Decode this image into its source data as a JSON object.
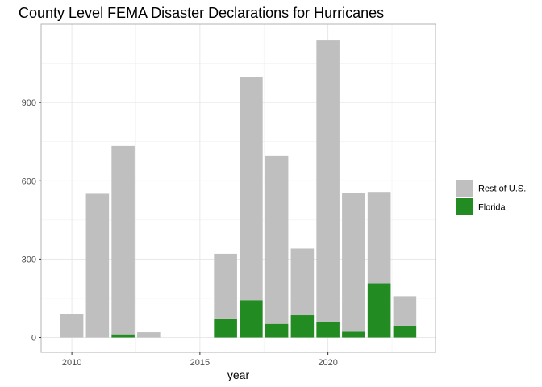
{
  "chart_data": {
    "type": "bar",
    "stacked": true,
    "title": "County Level FEMA Disaster Declarations for Hurricanes",
    "xlabel": "year",
    "ylabel": "",
    "x": [
      2010,
      2011,
      2012,
      2013,
      2016,
      2017,
      2018,
      2019,
      2020,
      2021,
      2022,
      2023
    ],
    "series": [
      {
        "name": "Rest of U.S.",
        "color": "#bfbfbf",
        "values": [
          90,
          550,
          722,
          20,
          250,
          855,
          645,
          255,
          1080,
          532,
          350,
          113
        ]
      },
      {
        "name": "Florida",
        "color": "#228b22",
        "values": [
          0,
          0,
          12,
          0,
          70,
          143,
          52,
          85,
          58,
          22,
          207,
          45
        ]
      }
    ],
    "xlim": [
      2008.8,
      2024.2
    ],
    "ylim": [
      -57,
      1200
    ],
    "x_ticks": [
      2010,
      2015,
      2020
    ],
    "x_tick_labels": [
      "2010",
      "2015",
      "2020"
    ],
    "y_ticks": [
      0,
      300,
      600,
      900
    ],
    "y_tick_labels": [
      "0",
      "300",
      "600",
      "900"
    ],
    "grid": true,
    "legend_position": "right"
  }
}
